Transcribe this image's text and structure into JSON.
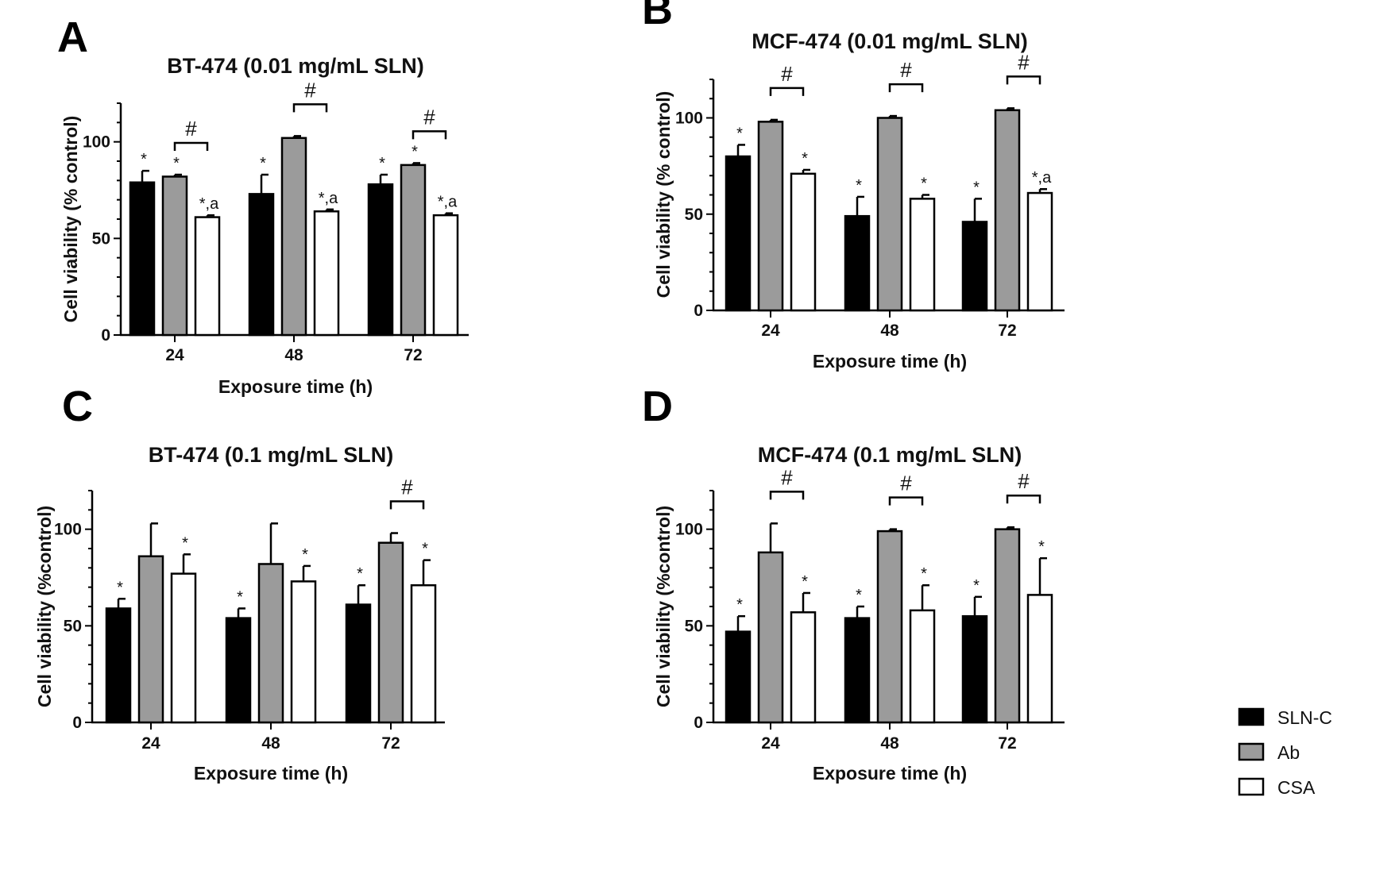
{
  "colors": {
    "SLN-C": "#000000",
    "Ab": "#9b9b9b",
    "CSA": "#ffffff",
    "stroke": "#000000"
  },
  "legend": [
    {
      "name": "SLN-C",
      "color": "#000000"
    },
    {
      "name": "Ab",
      "color": "#9b9b9b"
    },
    {
      "name": "CSA",
      "color": "#ffffff"
    }
  ],
  "chart_data": [
    {
      "type": "bar",
      "letter": "A",
      "title": "BT-474  (0.01 mg/mL SLN)",
      "xlabel": "Exposure time (h)",
      "ylabel": "Cell viability (% control)",
      "categories": [
        "24",
        "48",
        "72"
      ],
      "ylim": [
        0,
        120
      ],
      "yticks": [
        0,
        50,
        100
      ],
      "series": [
        {
          "name": "SLN-C",
          "values": [
            79,
            73,
            78
          ],
          "errors": [
            6,
            10,
            5
          ],
          "labels": [
            "*",
            "*",
            "*"
          ]
        },
        {
          "name": "Ab",
          "values": [
            82,
            102,
            88
          ],
          "errors": [
            1,
            1,
            1
          ],
          "labels": [
            "*",
            "",
            "*"
          ]
        },
        {
          "name": "CSA",
          "values": [
            61,
            64,
            62
          ],
          "errors": [
            1,
            1,
            1
          ],
          "labels": [
            "*,a",
            "*,a",
            "*,a"
          ]
        }
      ],
      "brackets": [
        {
          "category": "24",
          "from": "Ab",
          "to": "CSA",
          "label": "#"
        },
        {
          "category": "48",
          "from": "Ab",
          "to": "CSA",
          "label": "#"
        },
        {
          "category": "72",
          "from": "Ab",
          "to": "CSA",
          "label": "#"
        }
      ]
    },
    {
      "type": "bar",
      "letter": "B",
      "title": "MCF-474  (0.01 mg/mL SLN)",
      "xlabel": "Exposure time (h)",
      "ylabel": "Cell viability (% control)",
      "categories": [
        "24",
        "48",
        "72"
      ],
      "ylim": [
        0,
        120
      ],
      "yticks": [
        0,
        50,
        100
      ],
      "series": [
        {
          "name": "SLN-C",
          "values": [
            80,
            49,
            46
          ],
          "errors": [
            6,
            10,
            12
          ],
          "labels": [
            "*",
            "*",
            "*"
          ]
        },
        {
          "name": "Ab",
          "values": [
            98,
            100,
            104
          ],
          "errors": [
            1,
            1,
            1
          ],
          "labels": [
            "",
            "",
            ""
          ]
        },
        {
          "name": "CSA",
          "values": [
            71,
            58,
            61
          ],
          "errors": [
            2,
            2,
            2
          ],
          "labels": [
            "*",
            "*",
            "*,a"
          ]
        }
      ],
      "brackets": [
        {
          "category": "24",
          "from": "Ab",
          "to": "CSA",
          "label": "#"
        },
        {
          "category": "48",
          "from": "Ab",
          "to": "CSA",
          "label": "#"
        },
        {
          "category": "72",
          "from": "Ab",
          "to": "CSA",
          "label": "#"
        }
      ]
    },
    {
      "type": "bar",
      "letter": "C",
      "title": "BT-474  (0.1 mg/mL SLN)",
      "xlabel": "Exposure time (h)",
      "ylabel": "Cell viability (%control)",
      "categories": [
        "24",
        "48",
        "72"
      ],
      "ylim": [
        0,
        120
      ],
      "yticks": [
        0,
        50,
        100
      ],
      "series": [
        {
          "name": "SLN-C",
          "values": [
            59,
            54,
            61
          ],
          "errors": [
            5,
            5,
            10
          ],
          "labels": [
            "*",
            "*",
            "*"
          ]
        },
        {
          "name": "Ab",
          "values": [
            86,
            82,
            93
          ],
          "errors": [
            17,
            21,
            5
          ],
          "labels": [
            "",
            "",
            ""
          ]
        },
        {
          "name": "CSA",
          "values": [
            77,
            73,
            71
          ],
          "errors": [
            10,
            8,
            13
          ],
          "labels": [
            "*",
            "*",
            "*"
          ]
        }
      ],
      "brackets": [
        {
          "category": "72",
          "from": "Ab",
          "to": "CSA",
          "label": "#"
        }
      ]
    },
    {
      "type": "bar",
      "letter": "D",
      "title": "MCF-474  (0.1 mg/mL SLN)",
      "xlabel": "Exposure time (h)",
      "ylabel": "Cell viability (%control)",
      "categories": [
        "24",
        "48",
        "72"
      ],
      "ylim": [
        0,
        120
      ],
      "yticks": [
        0,
        50,
        100
      ],
      "series": [
        {
          "name": "SLN-C",
          "values": [
            47,
            54,
            55
          ],
          "errors": [
            8,
            6,
            10
          ],
          "labels": [
            "*",
            "*",
            "*"
          ]
        },
        {
          "name": "Ab",
          "values": [
            88,
            99,
            100
          ],
          "errors": [
            15,
            1,
            1
          ],
          "labels": [
            "",
            "",
            ""
          ]
        },
        {
          "name": "CSA",
          "values": [
            57,
            58,
            66
          ],
          "errors": [
            10,
            13,
            19
          ],
          "labels": [
            "*",
            "*",
            "*"
          ]
        }
      ],
      "brackets": [
        {
          "category": "24",
          "from": "Ab",
          "to": "CSA",
          "label": "#"
        },
        {
          "category": "48",
          "from": "Ab",
          "to": "CSA",
          "label": "#"
        },
        {
          "category": "72",
          "from": "Ab",
          "to": "CSA",
          "label": "#"
        }
      ]
    }
  ]
}
